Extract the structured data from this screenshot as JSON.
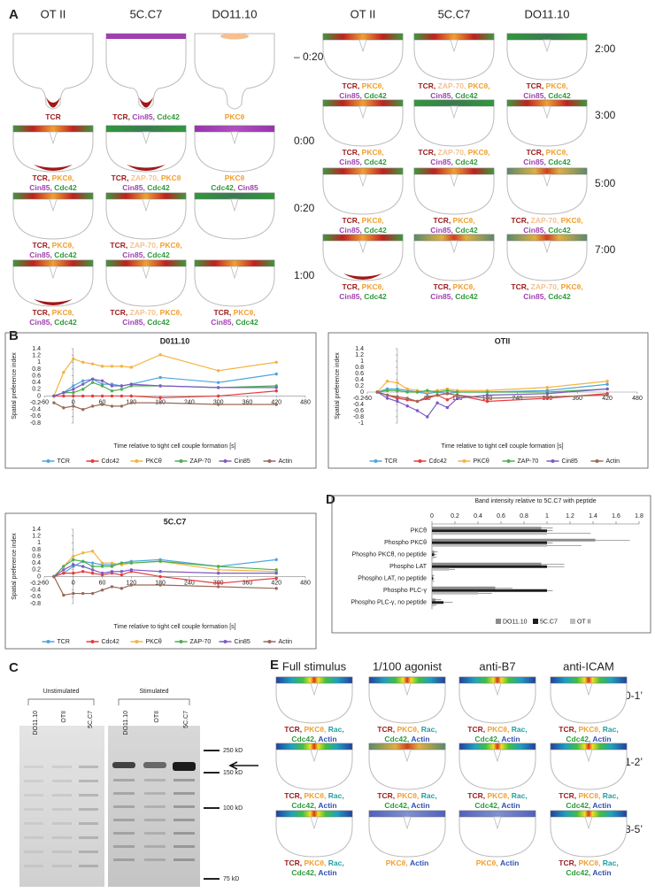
{
  "panel_labels": [
    "A",
    "B",
    "C",
    "D",
    "E"
  ],
  "label_colors": {
    "TCR": "#9b1c1c",
    "PKCθ": "#f0a030",
    "ZAP-70": "#f5c090",
    "Cin85": "#a040b0",
    "Cdc42": "#2e9a3a",
    "Rac": "#20a0a0",
    "Actin": "#3050b0"
  },
  "panel_a": {
    "groups": [
      {
        "columns": [
          "OT II",
          "5C.C7",
          "DO11.10"
        ],
        "rows": [
          {
            "time": "– 0:20",
            "cells": [
              [
                "TCR"
              ],
              [
                "TCR, Cin85, Cdc42"
              ],
              [
                "PKCθ"
              ]
            ]
          },
          {
            "time": "0:00",
            "cells": [
              [
                "TCR, PKCθ,",
                "Cin85, Cdc42"
              ],
              [
                "TCR, ZAP-70, PKCθ",
                "Cin85, Cdc42"
              ],
              [
                "PKCθ",
                "Cdc42, Cin85"
              ]
            ]
          },
          {
            "time": "0:20",
            "cells": [
              [
                "TCR, PKCθ,",
                "Cin85, Cdc42"
              ],
              [
                "TCR, ZAP-70, PKCθ,",
                "Cin85, Cdc42"
              ],
              []
            ]
          },
          {
            "time": "1:00",
            "cells": [
              [
                "TCR, PKCθ,",
                "Cin85, Cdc42"
              ],
              [
                "TCR, ZAP-70, PKCθ,",
                "Cin85, Cdc42"
              ],
              [
                "TCR, PKCθ,",
                "Cin85, Cdc42"
              ]
            ]
          }
        ]
      },
      {
        "columns": [
          "OT II",
          "5C.C7",
          "DO11.10"
        ],
        "rows": [
          {
            "time": "2:00",
            "cells": [
              [
                "TCR, PKCθ,",
                "Cin85, Cdc42"
              ],
              [
                "TCR, ZAP-70, PKCθ,",
                "Cin85, Cdc42"
              ],
              [
                "TCR, PKCθ,",
                "Cin85, Cdc42"
              ]
            ]
          },
          {
            "time": "3:00",
            "cells": [
              [
                "TCR, PKCθ,",
                "Cin85, Cdc42"
              ],
              [
                "TCR, ZAP-70, PKCθ,",
                "Cin85, Cdc42"
              ],
              [
                "TCR, PKCθ,",
                "Cin85, Cdc42"
              ]
            ]
          },
          {
            "time": "5:00",
            "cells": [
              [
                "TCR, PKCθ,",
                "Cin85, Cdc42"
              ],
              [
                "TCR, PKCθ,",
                "Cin85, Cdc42"
              ],
              [
                "TCR, ZAP-70, PKCθ,",
                "Cin85, Cdc42"
              ]
            ]
          },
          {
            "time": "7:00",
            "cells": [
              [
                "TCR, PKCθ,",
                "Cin85, Cdc42"
              ],
              [
                "TCR, PKCθ,",
                "Cin85, Cdc42"
              ],
              [
                "TCR, ZAP-70, PKCθ,",
                "Cin85, Cdc42"
              ]
            ]
          }
        ]
      }
    ]
  },
  "chart_data": [
    {
      "type": "line",
      "title": "D011.10",
      "xlabel": "Time relative to tight cell couple formation [s]",
      "ylabel": "Spatial preference index",
      "x": [
        -40,
        -20,
        0,
        20,
        40,
        60,
        80,
        100,
        120,
        180,
        300,
        420
      ],
      "xlim": [
        -60,
        480
      ],
      "xticks": [
        -60,
        0,
        60,
        120,
        180,
        240,
        300,
        360,
        420,
        480
      ],
      "ylim": [
        -0.8,
        1.4
      ],
      "yticks": [
        -0.8,
        -0.6,
        -0.4,
        -0.2,
        0,
        0.2,
        0.4,
        0.6,
        0.8,
        1,
        1.2,
        1.4
      ],
      "series": [
        {
          "name": "TCR",
          "color": "#4ea6dc",
          "values": [
            0,
            0.1,
            0.3,
            0.45,
            0.5,
            0.35,
            0.35,
            0.3,
            0.35,
            0.55,
            0.4,
            0.65
          ]
        },
        {
          "name": "Cdc42",
          "color": "#e83c3c",
          "values": [
            0,
            0,
            0,
            0,
            0,
            0,
            0,
            0,
            0,
            -0.05,
            0,
            0.15
          ]
        },
        {
          "name": "PKCθ",
          "color": "#f5b342",
          "values": [
            0,
            0.7,
            1.1,
            1,
            0.95,
            0.88,
            0.88,
            0.88,
            0.85,
            1.22,
            0.75,
            1
          ]
        },
        {
          "name": "ZAP-70",
          "color": "#4caf50",
          "values": [
            0,
            0.1,
            0.1,
            0.2,
            0.4,
            0.3,
            0.15,
            0.2,
            0.3,
            0.3,
            0.25,
            0.3
          ]
        },
        {
          "name": "Cin85",
          "color": "#7c5cc4",
          "values": [
            0,
            0.1,
            0.2,
            0.35,
            0.5,
            0.45,
            0.3,
            0.3,
            0.35,
            0.3,
            0.25,
            0.25
          ]
        },
        {
          "name": "Actin",
          "color": "#9a6a5a",
          "values": [
            -0.2,
            -0.35,
            -0.3,
            -0.4,
            -0.3,
            -0.25,
            -0.3,
            -0.3,
            -0.2,
            -0.2,
            -0.25,
            -0.25
          ]
        }
      ]
    },
    {
      "type": "line",
      "title": "OTII",
      "xlabel": "Time relative to tight cell couple formation [s]",
      "ylabel": "Spatial preference index",
      "x": [
        -40,
        -20,
        0,
        20,
        40,
        60,
        80,
        100,
        120,
        180,
        300,
        420
      ],
      "xlim": [
        -60,
        480
      ],
      "xticks": [
        -60,
        0,
        60,
        120,
        180,
        240,
        300,
        360,
        420,
        480
      ],
      "ylim": [
        -1,
        1.4
      ],
      "yticks": [
        -1,
        -0.8,
        -0.6,
        -0.4,
        -0.2,
        0,
        0.2,
        0.4,
        0.6,
        0.8,
        1,
        1.2,
        1.4
      ],
      "series": [
        {
          "name": "TCR",
          "color": "#4ea6dc",
          "values": [
            0,
            0.1,
            0.1,
            0.05,
            0,
            -0.05,
            0,
            -0.05,
            0,
            0,
            0.05,
            0.25
          ]
        },
        {
          "name": "Cdc42",
          "color": "#e83c3c",
          "values": [
            0,
            -0.1,
            -0.2,
            -0.25,
            -0.3,
            -0.2,
            -0.1,
            -0.25,
            -0.1,
            -0.3,
            -0.2,
            -0.05
          ]
        },
        {
          "name": "PKCθ",
          "color": "#f5b342",
          "values": [
            0,
            0.35,
            0.3,
            0.1,
            0.05,
            0,
            0.05,
            0.1,
            0.05,
            0.05,
            0.15,
            0.35
          ]
        },
        {
          "name": "ZAP-70",
          "color": "#4caf50",
          "values": [
            0,
            0.05,
            0.05,
            0,
            0,
            0.05,
            0,
            0.05,
            0,
            0,
            0,
            0.1
          ]
        },
        {
          "name": "Cin85",
          "color": "#7c5cc4",
          "values": [
            0,
            -0.2,
            -0.3,
            -0.45,
            -0.6,
            -0.8,
            -0.35,
            -0.5,
            -0.2,
            -0.1,
            -0.05,
            0.1
          ]
        },
        {
          "name": "Actin",
          "color": "#9a6a5a",
          "values": [
            0,
            -0.1,
            -0.15,
            -0.2,
            -0.3,
            -0.15,
            -0.1,
            -0.05,
            -0.1,
            -0.2,
            -0.15,
            -0.1
          ]
        }
      ]
    },
    {
      "type": "line",
      "title": "5C.C7",
      "xlabel": "Time relative to tight cell couple formation [s]",
      "ylabel": "Spatial preference index",
      "x": [
        -40,
        -20,
        0,
        20,
        40,
        60,
        80,
        100,
        120,
        180,
        300,
        420
      ],
      "xlim": [
        -60,
        480
      ],
      "xticks": [
        -60,
        0,
        60,
        120,
        180,
        240,
        300,
        360,
        420,
        480
      ],
      "ylim": [
        -0.8,
        1.4
      ],
      "yticks": [
        -0.8,
        -0.6,
        -0.4,
        -0.2,
        0,
        0.2,
        0.4,
        0.6,
        0.8,
        1,
        1.2,
        1.4
      ],
      "series": [
        {
          "name": "TCR",
          "color": "#4ea6dc",
          "values": [
            0,
            0.1,
            0.3,
            0.45,
            0.4,
            0.35,
            0.35,
            0.4,
            0.45,
            0.5,
            0.3,
            0.5
          ]
        },
        {
          "name": "Cdc42",
          "color": "#e83c3c",
          "values": [
            0,
            0.1,
            0.1,
            0.15,
            0.1,
            0.05,
            0.1,
            0.05,
            0.15,
            0,
            -0.2,
            -0.05
          ]
        },
        {
          "name": "PKCθ",
          "color": "#f5b342",
          "values": [
            0,
            0.3,
            0.6,
            0.7,
            0.75,
            0.4,
            0.4,
            0.35,
            0.4,
            0.45,
            0.2,
            0.15
          ]
        },
        {
          "name": "ZAP-70",
          "color": "#4caf50",
          "values": [
            0,
            0.3,
            0.5,
            0.45,
            0.3,
            0.3,
            0.3,
            0.4,
            0.4,
            0.45,
            0.3,
            0.2
          ]
        },
        {
          "name": "Cin85",
          "color": "#7c5cc4",
          "values": [
            0,
            0.2,
            0.35,
            0.3,
            0.2,
            0.1,
            0.15,
            0.15,
            0.2,
            0.15,
            0.1,
            0.1
          ]
        },
        {
          "name": "Actin",
          "color": "#9a6a5a",
          "values": [
            0,
            -0.55,
            -0.5,
            -0.5,
            -0.5,
            -0.4,
            -0.3,
            -0.35,
            -0.25,
            -0.25,
            -0.3,
            -0.35
          ]
        }
      ]
    },
    {
      "type": "hbar",
      "title": "Band intensity relative to 5C.C7 with peptide",
      "categories": [
        "PKCθ",
        "Phospho PKCθ",
        "Phospho PKCθ, no peptide",
        "Phospho LAT",
        "Phospho LAT, no peptide",
        "Phospho PLC-γ",
        "Phospho PLC-γ, no peptide"
      ],
      "xlim": [
        0,
        1.8
      ],
      "xticks": [
        0,
        0.2,
        0.4,
        0.6,
        0.8,
        1,
        1.2,
        1.4,
        1.6,
        1.8
      ],
      "series": [
        {
          "name": "DO11.10",
          "color": "#8c8c8c",
          "values": [
            0.95,
            1.42,
            0.02,
            0.95,
            0.01,
            0.55,
            0.03
          ],
          "errors": [
            0.1,
            0.3,
            0.03,
            0.2,
            0.01,
            0.15,
            0.05
          ]
        },
        {
          "name": "5C.C7",
          "color": "#1e1e1e",
          "values": [
            1,
            1,
            0.02,
            1,
            0.01,
            1,
            0.1
          ],
          "errors": [
            0.05,
            0.05,
            0.02,
            0.15,
            0.01,
            0.05,
            0.08
          ]
        },
        {
          "name": "OT II",
          "color": "#bdbdbd",
          "values": [
            1,
            1,
            0.02,
            0.15,
            0.01,
            0.4,
            0.02
          ],
          "errors": [
            0.38,
            0.3,
            0.02,
            0.05,
            0.01,
            0.12,
            0.02
          ]
        }
      ]
    }
  ],
  "panel_c": {
    "groups": [
      {
        "label": "Unstimulated",
        "lanes": [
          "DO11.10",
          "OTII",
          "5C.C7"
        ]
      },
      {
        "label": "Stimulated",
        "lanes": [
          "DO11.10",
          "OTII",
          "5C.C7"
        ]
      }
    ],
    "markers": [
      "250 kD",
      "150 kD",
      "100 kD",
      "75 kD"
    ]
  },
  "panel_e": {
    "columns": [
      "Full stimulus",
      "1/100 agonist",
      "anti-B7",
      "anti-ICAM"
    ],
    "rows": [
      {
        "time": "0-1’",
        "cells": [
          [
            "TCR, PKCθ, Rac,",
            "Cdc42, Actin"
          ],
          [
            "TCR, PKCθ, Rac,",
            "Cdc42, Actin"
          ],
          [
            "TCR, PKCθ, Rac,",
            "Cdc42, Actin"
          ],
          [
            "TCR, PKCθ, Rac,",
            "Cdc42, Actin"
          ]
        ]
      },
      {
        "time": "1-2’",
        "cells": [
          [
            "TCR, PKCθ, Rac,",
            "Cdc42, Actin"
          ],
          [
            "TCR, PKCθ, Rac,",
            "Cdc42, Actin"
          ],
          [
            "TCR, PKCθ, Rac,",
            "Cdc42, Actin"
          ],
          [
            "TCR, PKCθ, Rac,",
            "Cdc42, Actin"
          ]
        ]
      },
      {
        "time": "3-5’",
        "cells": [
          [
            "TCR, PKCθ, Rac,",
            "Cdc42, Actin"
          ],
          [
            "PKCθ, Actin"
          ],
          [
            "PKCθ, Actin"
          ],
          [
            "TCR, PKCθ, Rac,",
            "Cdc42, Actin"
          ]
        ]
      }
    ]
  }
}
